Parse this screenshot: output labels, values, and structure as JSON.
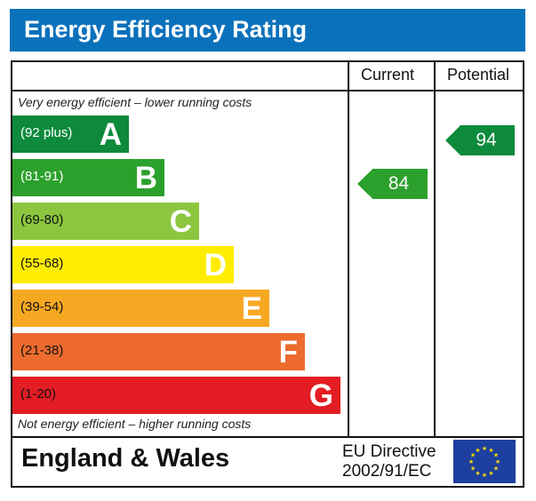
{
  "header": {
    "title": "Energy Efficiency Rating"
  },
  "columns": {
    "current": "Current",
    "potential": "Potential"
  },
  "notes": {
    "top": "Very energy efficient – lower running costs",
    "bottom": "Not energy efficient – higher running costs"
  },
  "footer": {
    "region": "England & Wales",
    "directive_line1": "EU Directive",
    "directive_line2": "2002/91/EC",
    "flag_icon": "eu-flag-icon"
  },
  "chart_data": {
    "type": "bar",
    "bands": [
      {
        "letter": "A",
        "range": "(92 plus)",
        "color": "#0e8a3c",
        "text_color": "#ffffff"
      },
      {
        "letter": "B",
        "range": "(81-91)",
        "color": "#2ca02c",
        "text_color": "#ffffff"
      },
      {
        "letter": "C",
        "range": "(69-80)",
        "color": "#8cc63f",
        "text_color": "#111111"
      },
      {
        "letter": "D",
        "range": "(55-68)",
        "color": "#ffed00",
        "text_color": "#111111"
      },
      {
        "letter": "E",
        "range": "(39-54)",
        "color": "#f7a823",
        "text_color": "#111111"
      },
      {
        "letter": "F",
        "range": "(21-38)",
        "color": "#ec6b2d",
        "text_color": "#111111"
      },
      {
        "letter": "G",
        "range": "(1-20)",
        "color": "#e31d23",
        "text_color": "#111111"
      }
    ],
    "current": {
      "value": "84",
      "band": "B",
      "color": "#2ca02c"
    },
    "potential": {
      "value": "94",
      "band": "A",
      "color": "#0e8a3c"
    }
  }
}
